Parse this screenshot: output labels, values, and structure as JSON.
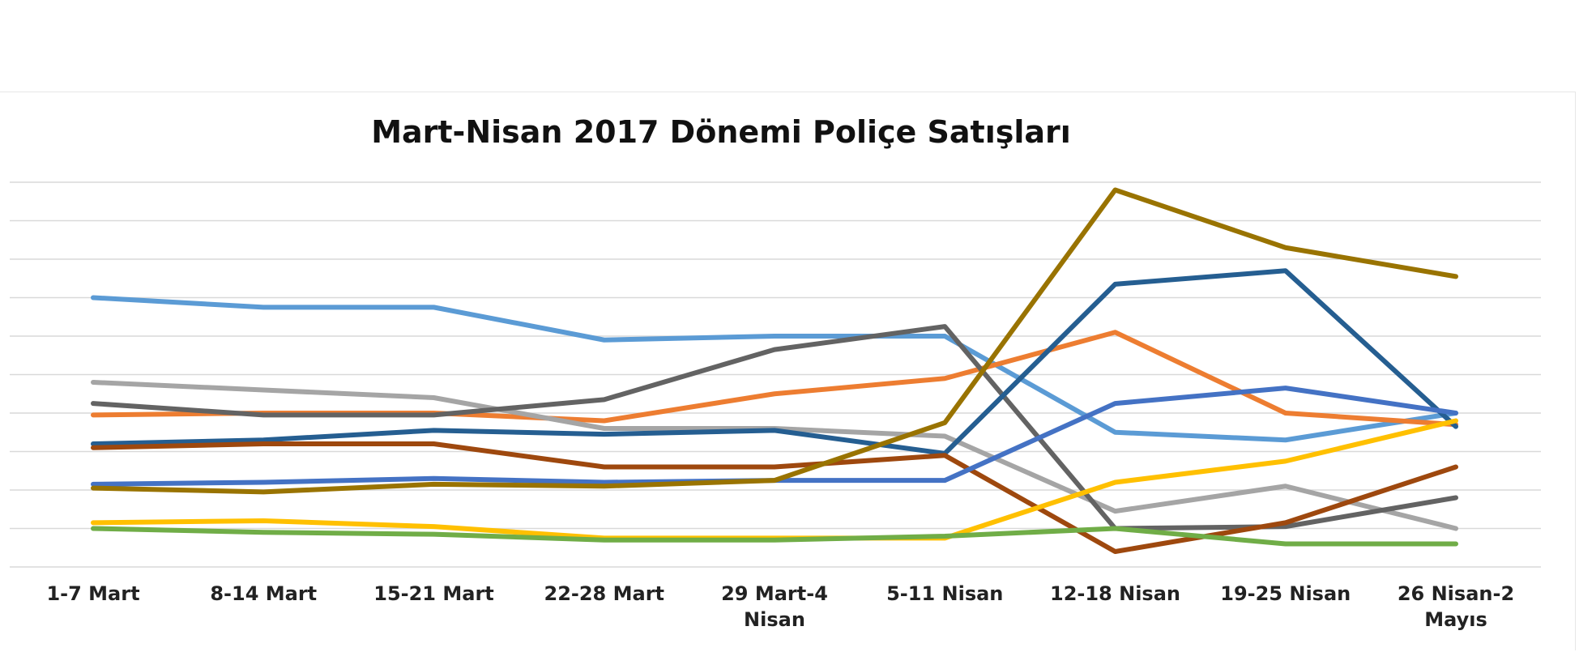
{
  "chart_data": {
    "type": "line",
    "title": "Mart-Nisan 2017 Dönemi Poliçe Satışları",
    "xlabel": "",
    "ylabel": "",
    "ylim": [
      0,
      100
    ],
    "grid": true,
    "legend": "none",
    "categories": [
      [
        "1-7 Mart"
      ],
      [
        "8-14 Mart"
      ],
      [
        "15-21 Mart"
      ],
      [
        "22-28 Mart"
      ],
      [
        "29 Mart-4",
        "Nisan"
      ],
      [
        "5-11 Nisan"
      ],
      [
        "12-18 Nisan"
      ],
      [
        "19-25 Nisan"
      ],
      [
        "26 Nisan-2",
        "Mayıs"
      ]
    ],
    "series": [
      {
        "color": "#5b9bd5",
        "values": [
          70,
          67.5,
          67.5,
          59,
          60,
          60,
          35,
          33,
          40
        ]
      },
      {
        "color": "#ed7d31",
        "values": [
          39.5,
          40,
          40,
          38,
          45,
          49,
          61,
          40,
          37
        ]
      },
      {
        "color": "#a5a5a5",
        "values": [
          48,
          46,
          44,
          36,
          36,
          34,
          14.5,
          21,
          10
        ]
      },
      {
        "color": "#636363",
        "values": [
          42.5,
          39.5,
          39.5,
          43.5,
          56.5,
          62.5,
          10,
          10.5,
          18
        ]
      },
      {
        "color": "#255e91",
        "values": [
          32,
          33,
          35.5,
          34.5,
          35.5,
          29.5,
          73.5,
          77,
          36.5
        ]
      },
      {
        "color": "#9e480e",
        "values": [
          31,
          32,
          32,
          26,
          26,
          29,
          4,
          11.5,
          26
        ]
      },
      {
        "color": "#4472c4",
        "values": [
          21.5,
          22,
          23,
          22,
          22.5,
          22.5,
          42.5,
          46.5,
          40
        ]
      },
      {
        "color": "#997300",
        "values": [
          20.5,
          19.5,
          21.5,
          21,
          22.5,
          37.5,
          98,
          83,
          75.5
        ]
      },
      {
        "color": "#ffc000",
        "values": [
          11.5,
          12,
          10.5,
          7.5,
          7.5,
          7.5,
          22,
          27.5,
          38
        ]
      },
      {
        "color": "#70ad47",
        "values": [
          10,
          9,
          8.5,
          7,
          7,
          8,
          10,
          6,
          6
        ]
      }
    ]
  }
}
